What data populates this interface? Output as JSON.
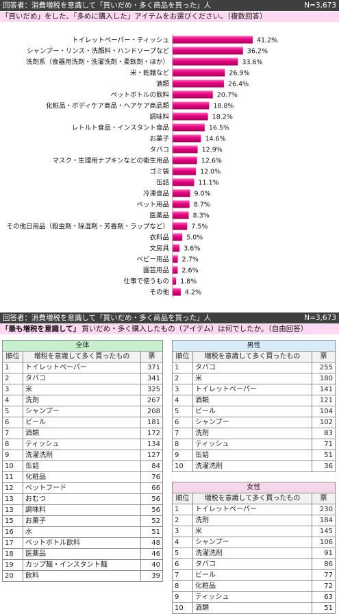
{
  "section1": {
    "header": "回答者：消費増税を意識して「買いだめ・多く商品を買った」人",
    "n": "N=3,673",
    "question": "「買いだめ」をした、「多めに購入した」アイテムをお選びください。（複数回答）"
  },
  "chart_data": {
    "type": "bar",
    "orientation": "horizontal",
    "categories": [
      "トイレットペーパー・ティッシュ",
      "シャンプー・リンス・洗顔料・ハンドソープなど",
      "洗剤系（食器用洗剤・洗濯洗剤・柔軟剤・ほか）",
      "米・乾麺など",
      "酒類",
      "ペットボトルの飲料",
      "化粧品・ボディケア商品・ヘアケア商品類",
      "調味料",
      "レトルト食品・インスタント食品",
      "お菓子",
      "タバコ",
      "マスク・生理用ナプキンなどの衛生用品",
      "ゴミ袋",
      "缶詰",
      "冷凍食品",
      "ペット用品",
      "医薬品",
      "その他日用品（殺虫剤・除湿剤・芳香剤・ラップなど）",
      "衣料品",
      "文房具",
      "ベビー用品",
      "園芸用品",
      "仕事で使うもの",
      "その他"
    ],
    "values": [
      41.2,
      36.2,
      33.6,
      26.9,
      26.4,
      20.7,
      18.8,
      18.2,
      16.5,
      14.6,
      12.9,
      12.6,
      12.0,
      11.1,
      9.0,
      8.7,
      8.3,
      7.5,
      5.0,
      3.6,
      2.7,
      2.6,
      1.8,
      4.2
    ],
    "value_labels": [
      "41.2%",
      "36.2%",
      "33.6%",
      "26.9%",
      "26.4%",
      "20.7%",
      "18.8%",
      "18.2%",
      "16.5%",
      "14.6%",
      "12.9%",
      "12.6%",
      "12.0%",
      "11.1%",
      "9.0%",
      "8.7%",
      "8.3%",
      "7.5%",
      "5.0%",
      "3.6%",
      "2.7%",
      "2.6%",
      "1.8%",
      "4.2%"
    ],
    "xlim": [
      0,
      45
    ],
    "bar_color": "#e6007e",
    "grid": false,
    "legend": "none"
  },
  "section2": {
    "header": "回答者：消費増税を意識して「買いだめ・多く商品を買った」人",
    "n": "N=3,673",
    "question_bold": "「最も増税を意識して」",
    "question_rest": "買いだめ・多く購入したもの（アイテム）は何でしたか。（自由回答）"
  },
  "tables": {
    "all": {
      "caption": "全体",
      "headers": [
        "順位",
        "増税を意識して多く買ったもの",
        "票"
      ],
      "rows": [
        [
          "1",
          "トイレットペーパー",
          "371"
        ],
        [
          "2",
          "タバコ",
          "341"
        ],
        [
          "3",
          "米",
          "325"
        ],
        [
          "4",
          "洗剤",
          "267"
        ],
        [
          "5",
          "シャンプー",
          "208"
        ],
        [
          "6",
          "ビール",
          "181"
        ],
        [
          "7",
          "酒類",
          "172"
        ],
        [
          "8",
          "ティッシュ",
          "134"
        ],
        [
          "9",
          "洗濯洗剤",
          "127"
        ],
        [
          "10",
          "缶詰",
          "84"
        ],
        [
          "11",
          "化粧品",
          "76"
        ],
        [
          "12",
          "ペットフード",
          "66"
        ],
        [
          "13",
          "おむつ",
          "56"
        ],
        [
          "13",
          "調味料",
          "56"
        ],
        [
          "15",
          "お菓子",
          "52"
        ],
        [
          "16",
          "水",
          "51"
        ],
        [
          "17",
          "ペットボトル飲料",
          "48"
        ],
        [
          "18",
          "医薬品",
          "46"
        ],
        [
          "19",
          "カップ麺・インスタント麺",
          "40"
        ],
        [
          "20",
          "飲料",
          "39"
        ]
      ]
    },
    "male": {
      "caption": "男性",
      "headers": [
        "順位",
        "増税を意識して多く買ったもの",
        "票"
      ],
      "rows": [
        [
          "1",
          "タバコ",
          "255"
        ],
        [
          "2",
          "米",
          "180"
        ],
        [
          "3",
          "トイレットペーパー",
          "141"
        ],
        [
          "4",
          "酒類",
          "121"
        ],
        [
          "5",
          "ビール",
          "104"
        ],
        [
          "6",
          "シャンプー",
          "102"
        ],
        [
          "7",
          "洗剤",
          "83"
        ],
        [
          "8",
          "ティッシュ",
          "71"
        ],
        [
          "9",
          "缶詰",
          "51"
        ],
        [
          "10",
          "洗濯洗剤",
          "36"
        ]
      ]
    },
    "female": {
      "caption": "女性",
      "headers": [
        "順位",
        "増税を意識して多く買ったもの",
        "票"
      ],
      "rows": [
        [
          "1",
          "トイレットペーパー",
          "230"
        ],
        [
          "2",
          "洗剤",
          "184"
        ],
        [
          "3",
          "米",
          "145"
        ],
        [
          "4",
          "シャンプー",
          "106"
        ],
        [
          "5",
          "洗濯洗剤",
          "91"
        ],
        [
          "6",
          "タバコ",
          "86"
        ],
        [
          "7",
          "ビール",
          "77"
        ],
        [
          "8",
          "化粧品",
          "72"
        ],
        [
          "9",
          "ティッシュ",
          "63"
        ],
        [
          "10",
          "酒類",
          "51"
        ]
      ]
    }
  }
}
